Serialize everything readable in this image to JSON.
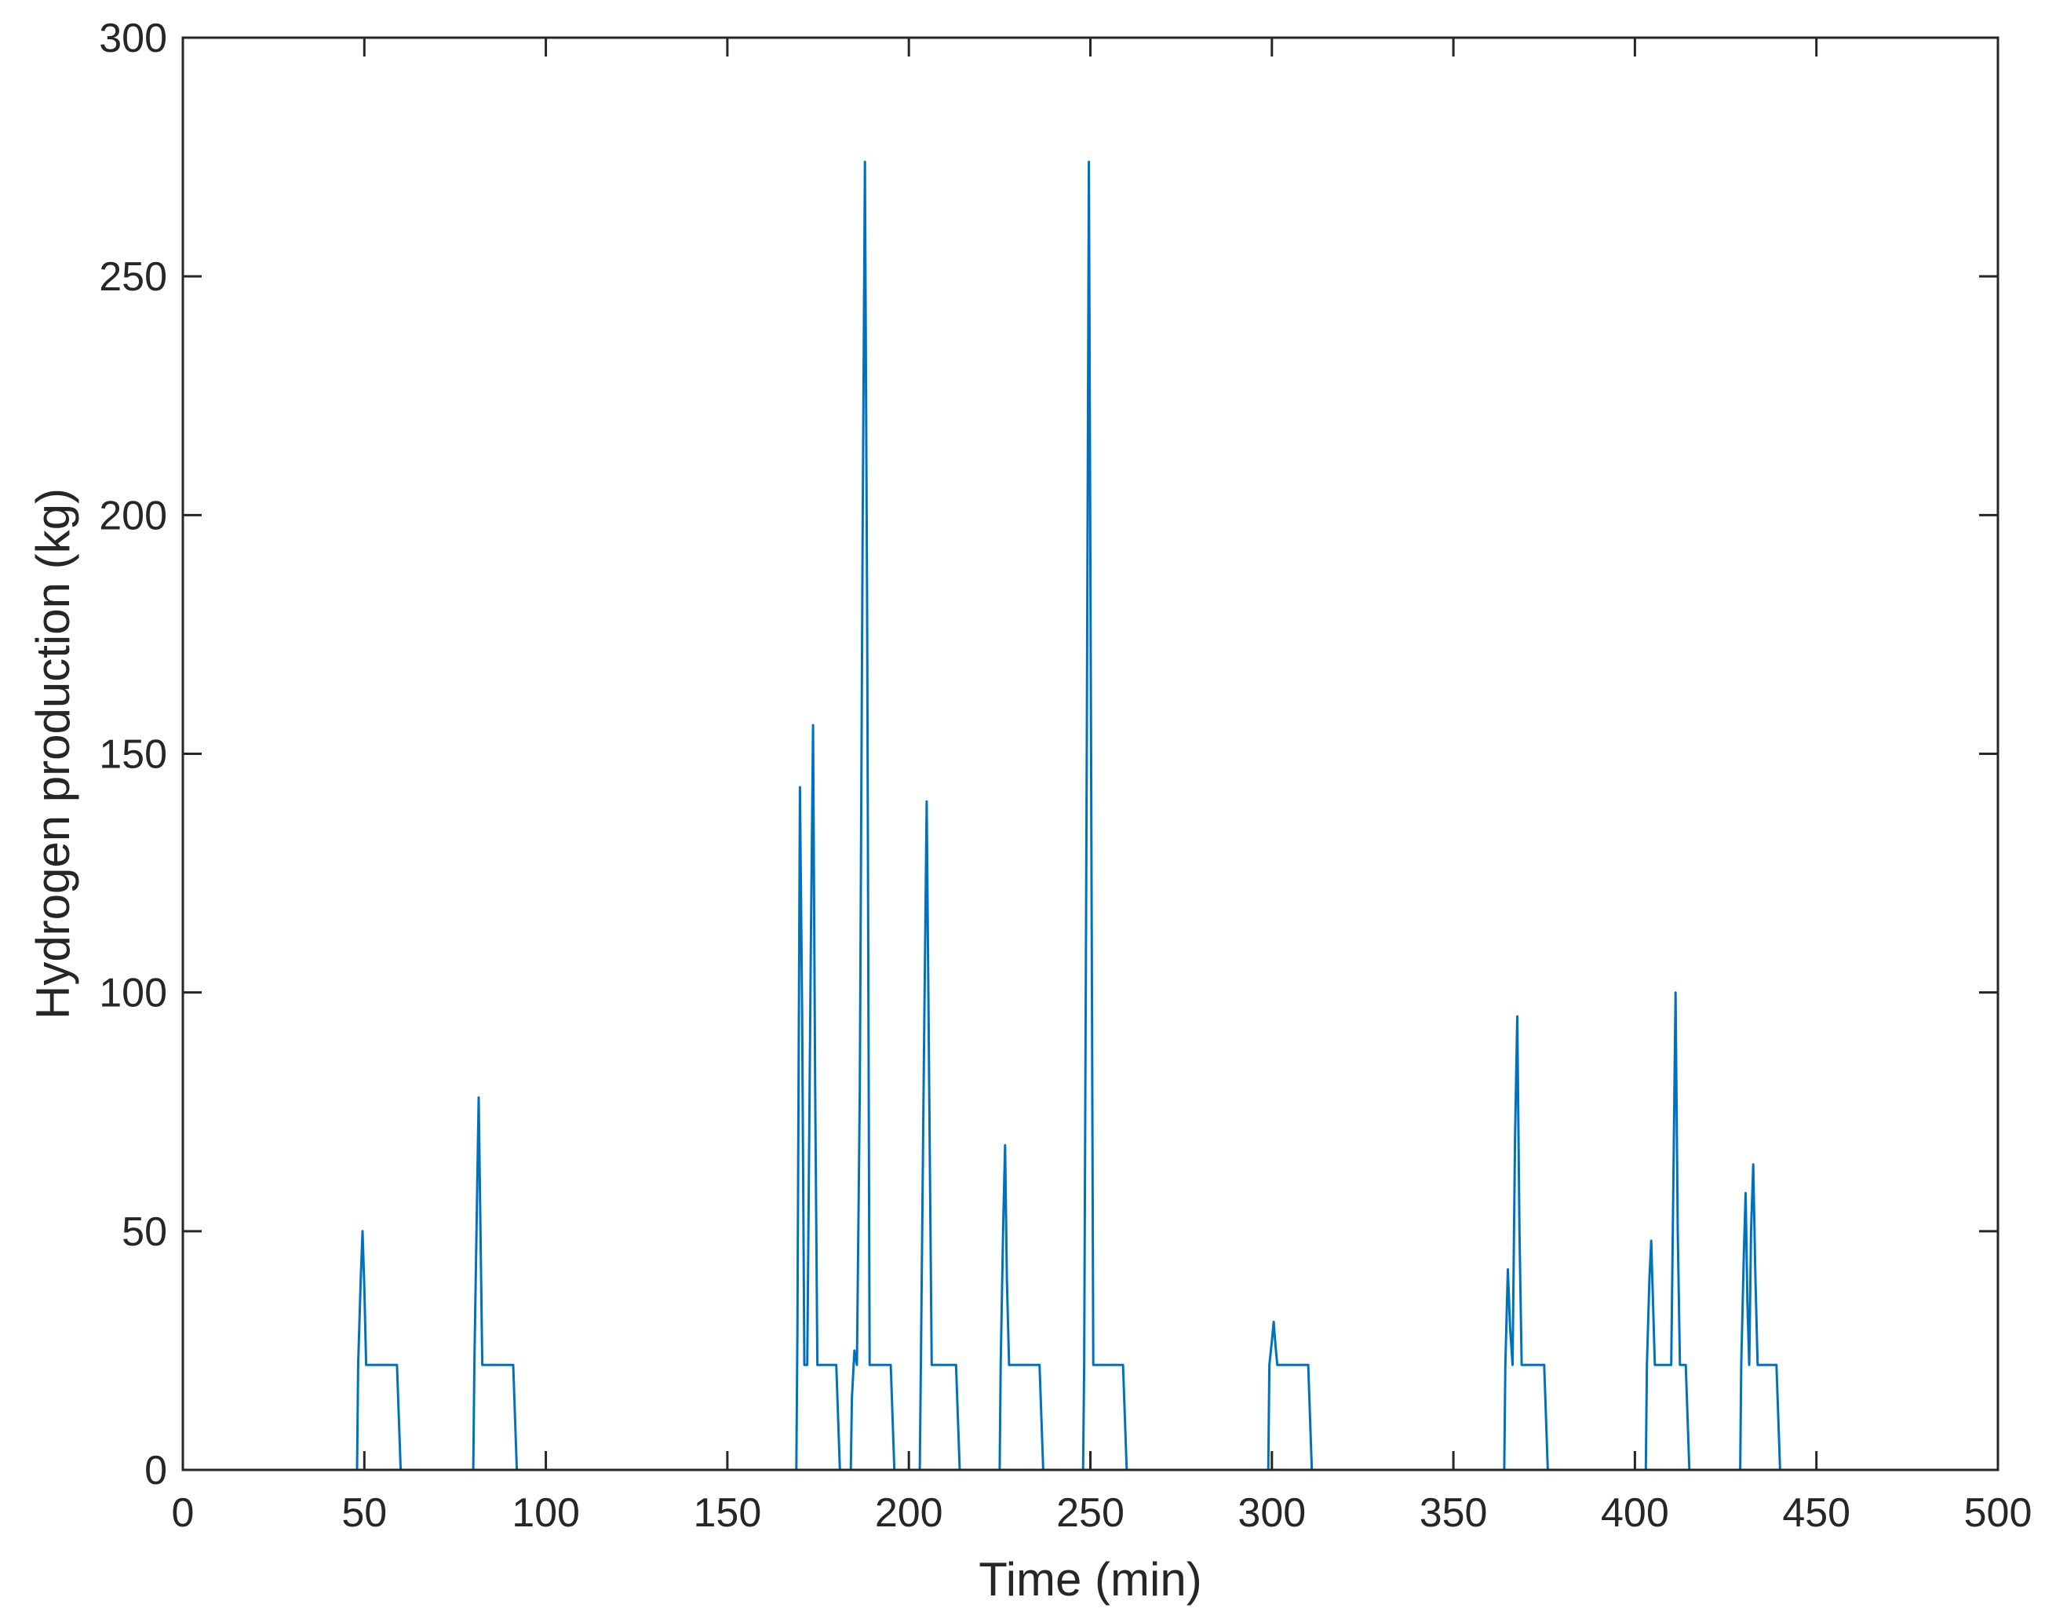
{
  "chart_data": {
    "type": "line",
    "title": "",
    "xlabel": "Time (min)",
    "ylabel": "Hydrogen production (kg)",
    "xlim": [
      0,
      500
    ],
    "ylim": [
      0,
      300
    ],
    "x_ticks": [
      0,
      50,
      100,
      150,
      200,
      250,
      300,
      350,
      400,
      450,
      500
    ],
    "y_ticks": [
      0,
      50,
      100,
      150,
      200,
      250,
      300
    ],
    "x_tick_labels": [
      "0",
      "50",
      "100",
      "150",
      "200",
      "250",
      "300",
      "350",
      "400",
      "450",
      "500"
    ],
    "y_tick_labels": [
      "0",
      "50",
      "100",
      "150",
      "200",
      "250",
      "300"
    ],
    "grid": false,
    "series": [
      {
        "color": "#0072BD",
        "points": [
          [
            0,
            0
          ],
          [
            48,
            0
          ],
          [
            48.3,
            22
          ],
          [
            49,
            40
          ],
          [
            49.5,
            50
          ],
          [
            50,
            38
          ],
          [
            50.5,
            22
          ],
          [
            59,
            22
          ],
          [
            60,
            0
          ],
          [
            80,
            0
          ],
          [
            80.3,
            22
          ],
          [
            81,
            55
          ],
          [
            81.5,
            78
          ],
          [
            82,
            50
          ],
          [
            82.5,
            22
          ],
          [
            91,
            22
          ],
          [
            92,
            0
          ],
          [
            169,
            0
          ],
          [
            169.3,
            30
          ],
          [
            170,
            143
          ],
          [
            170.6,
            95
          ],
          [
            171.2,
            22
          ],
          [
            172,
            22
          ],
          [
            173,
            110
          ],
          [
            173.6,
            156
          ],
          [
            174.2,
            80
          ],
          [
            174.8,
            22
          ],
          [
            180,
            22
          ],
          [
            181,
            0
          ],
          [
            184,
            0
          ],
          [
            184.3,
            15
          ],
          [
            185,
            25
          ],
          [
            185.7,
            22
          ],
          [
            186.5,
            80
          ],
          [
            187.3,
            200
          ],
          [
            187.9,
            274
          ],
          [
            188.5,
            180
          ],
          [
            189.2,
            22
          ],
          [
            195,
            22
          ],
          [
            196,
            0
          ],
          [
            203,
            0
          ],
          [
            203.3,
            22
          ],
          [
            204.2,
            90
          ],
          [
            204.9,
            140
          ],
          [
            205.6,
            80
          ],
          [
            206.3,
            22
          ],
          [
            213,
            22
          ],
          [
            214,
            0
          ],
          [
            225,
            0
          ],
          [
            225.3,
            22
          ],
          [
            226,
            52
          ],
          [
            226.5,
            68
          ],
          [
            227,
            40
          ],
          [
            227.6,
            22
          ],
          [
            236,
            22
          ],
          [
            237,
            0
          ],
          [
            248,
            0
          ],
          [
            248.3,
            22
          ],
          [
            249,
            150
          ],
          [
            249.6,
            274
          ],
          [
            250.2,
            150
          ],
          [
            250.8,
            22
          ],
          [
            259,
            22
          ],
          [
            260,
            0
          ],
          [
            299,
            0
          ],
          [
            299.3,
            22
          ],
          [
            300,
            27
          ],
          [
            300.5,
            31
          ],
          [
            301,
            26
          ],
          [
            301.5,
            22
          ],
          [
            310,
            22
          ],
          [
            311,
            0
          ],
          [
            364,
            0
          ],
          [
            364.3,
            22
          ],
          [
            365,
            42
          ],
          [
            365.6,
            30
          ],
          [
            366.3,
            22
          ],
          [
            367,
            70
          ],
          [
            367.6,
            95
          ],
          [
            368.2,
            50
          ],
          [
            368.8,
            22
          ],
          [
            375,
            22
          ],
          [
            376,
            0
          ],
          [
            403,
            0
          ],
          [
            403.3,
            22
          ],
          [
            404,
            40
          ],
          [
            404.5,
            48
          ],
          [
            405,
            35
          ],
          [
            405.5,
            22
          ],
          [
            410,
            22
          ],
          [
            410.6,
            60
          ],
          [
            411.2,
            100
          ],
          [
            411.8,
            50
          ],
          [
            412.4,
            22
          ],
          [
            414,
            22
          ],
          [
            415,
            0
          ],
          [
            429,
            0
          ],
          [
            429.3,
            22
          ],
          [
            430,
            45
          ],
          [
            430.5,
            58
          ],
          [
            431,
            35
          ],
          [
            431.5,
            22
          ],
          [
            432,
            50
          ],
          [
            432.6,
            64
          ],
          [
            433.2,
            40
          ],
          [
            433.8,
            22
          ],
          [
            439,
            22
          ],
          [
            440,
            0
          ],
          [
            500,
            0
          ]
        ]
      }
    ]
  }
}
